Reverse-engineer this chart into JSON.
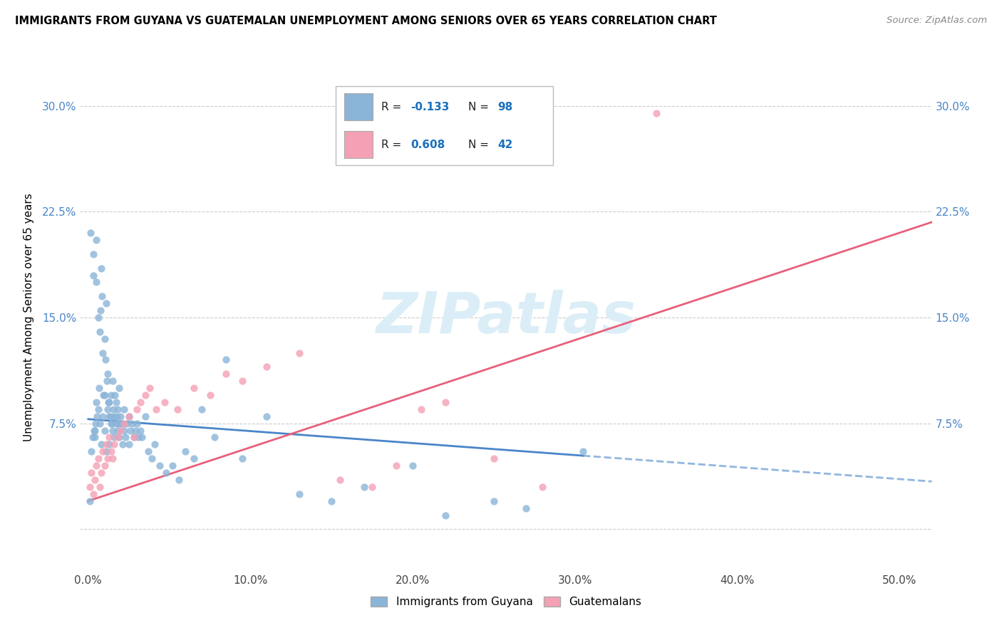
{
  "title": "IMMIGRANTS FROM GUYANA VS GUATEMALAN UNEMPLOYMENT AMONG SENIORS OVER 65 YEARS CORRELATION CHART",
  "source": "Source: ZipAtlas.com",
  "ylabel": "Unemployment Among Seniors over 65 years",
  "x_tick_values": [
    0,
    10,
    20,
    30,
    40,
    50
  ],
  "y_tick_values": [
    0,
    7.5,
    15.0,
    22.5,
    30.0
  ],
  "xlim": [
    -0.5,
    52
  ],
  "ylim": [
    -3,
    33
  ],
  "legend_label1": "Immigrants from Guyana",
  "legend_label2": "Guatemalans",
  "blue_color": "#8ab4d8",
  "pink_color": "#f4a0b5",
  "blue_line_color": "#4a86c8",
  "pink_line_color": "#e8607a",
  "watermark": "ZIPatlas",
  "watermark_color": "#dbeef8",
  "blue_line_intercept": 7.8,
  "blue_line_slope": -0.085,
  "pink_line_intercept": 2.0,
  "pink_line_slope": 0.38,
  "blue_solid_end": 30.5,
  "blue_dashed_end": 52,
  "blue_scatter_x": [
    0.1,
    0.2,
    0.3,
    0.3,
    0.4,
    0.4,
    0.5,
    0.5,
    0.5,
    0.6,
    0.6,
    0.7,
    0.7,
    0.8,
    0.8,
    0.9,
    0.9,
    1.0,
    1.0,
    1.0,
    1.1,
    1.1,
    1.2,
    1.2,
    1.3,
    1.3,
    1.3,
    1.4,
    1.4,
    1.5,
    1.5,
    1.6,
    1.6,
    1.7,
    1.7,
    1.8,
    1.8,
    1.9,
    1.9,
    2.0,
    2.0,
    2.1,
    2.1,
    2.2,
    2.2,
    2.3,
    2.4,
    2.5,
    2.5,
    2.6,
    2.7,
    2.8,
    2.9,
    3.0,
    3.1,
    3.2,
    3.3,
    3.5,
    3.7,
    3.9,
    4.1,
    4.4,
    4.8,
    5.2,
    5.6,
    6.0,
    6.5,
    7.0,
    7.8,
    8.5,
    9.5,
    11.0,
    13.0,
    15.0,
    17.0,
    20.0,
    22.0,
    25.0,
    27.0,
    30.5,
    0.15,
    0.25,
    0.35,
    0.45,
    0.55,
    0.65,
    0.75,
    0.85,
    0.95,
    1.05,
    1.15,
    1.25,
    1.35,
    1.45,
    1.55,
    1.65,
    1.75,
    1.85
  ],
  "blue_scatter_y": [
    2.0,
    5.5,
    19.5,
    18.0,
    6.5,
    7.0,
    20.5,
    17.5,
    9.0,
    8.5,
    15.0,
    7.5,
    14.0,
    18.5,
    6.0,
    8.0,
    12.5,
    9.5,
    13.5,
    7.0,
    16.0,
    5.5,
    8.5,
    11.0,
    9.0,
    6.0,
    8.0,
    7.5,
    9.5,
    10.5,
    7.0,
    8.0,
    6.5,
    9.0,
    7.5,
    8.5,
    7.0,
    10.0,
    6.5,
    8.0,
    7.5,
    7.5,
    6.0,
    8.5,
    7.0,
    6.5,
    7.5,
    8.0,
    6.0,
    7.0,
    7.5,
    6.5,
    7.0,
    7.5,
    6.5,
    7.0,
    6.5,
    8.0,
    5.5,
    5.0,
    6.0,
    4.5,
    4.0,
    4.5,
    3.5,
    5.5,
    5.0,
    8.5,
    6.5,
    12.0,
    5.0,
    8.0,
    2.5,
    2.0,
    3.0,
    4.5,
    1.0,
    2.0,
    1.5,
    5.5,
    21.0,
    6.5,
    7.0,
    7.5,
    8.0,
    10.0,
    15.5,
    16.5,
    9.5,
    12.0,
    10.5,
    9.0,
    8.0,
    7.5,
    8.5,
    9.5,
    8.0,
    7.5
  ],
  "pink_scatter_x": [
    0.1,
    0.2,
    0.3,
    0.4,
    0.5,
    0.6,
    0.7,
    0.8,
    0.9,
    1.0,
    1.1,
    1.2,
    1.3,
    1.4,
    1.5,
    1.6,
    1.8,
    2.0,
    2.2,
    2.5,
    2.8,
    3.0,
    3.2,
    3.5,
    3.8,
    4.2,
    4.7,
    5.5,
    6.5,
    7.5,
    8.5,
    9.5,
    11.0,
    13.0,
    15.5,
    17.5,
    19.0,
    20.5,
    22.0,
    25.0,
    28.0,
    35.0
  ],
  "pink_scatter_y": [
    3.0,
    4.0,
    2.5,
    3.5,
    4.5,
    5.0,
    3.0,
    4.0,
    5.5,
    4.5,
    6.0,
    5.0,
    6.5,
    5.5,
    5.0,
    6.0,
    6.5,
    7.0,
    7.5,
    8.0,
    6.5,
    8.5,
    9.0,
    9.5,
    10.0,
    8.5,
    9.0,
    8.5,
    10.0,
    9.5,
    11.0,
    10.5,
    11.5,
    12.5,
    3.5,
    3.0,
    4.5,
    8.5,
    9.0,
    5.0,
    3.0,
    29.5
  ]
}
